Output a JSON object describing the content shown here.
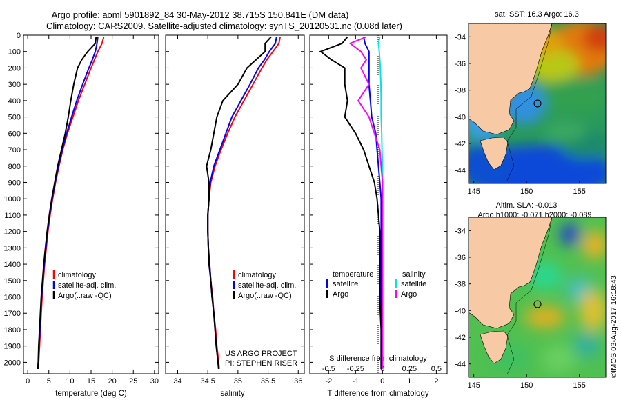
{
  "header": {
    "title_line1": "Argo profile: aoml 5901892_84 30-May-2012 38.715S 150.841E (DM data)",
    "title_line2": "Climatology: CARS2009. Satellite-adjusted climatology: synTS_20120531.nc (0.08d later)"
  },
  "legend_labels": {
    "climatology": "climatology",
    "satellite_adj": "satellite-adj. clim.",
    "argo_raw": "Argo(..raw -QC)",
    "temperature": "temperature",
    "salinity": "salinity",
    "satellite": "satellite",
    "argo": "Argo"
  },
  "credits": {
    "project": "US ARGO PROJECT",
    "pi": "PI: STEPHEN RISER",
    "footer": "©IMOS 03-Aug-2017 16:18:43"
  },
  "colors": {
    "climatology": "#ff0000",
    "satellite_adj": "#0000ff",
    "argo": "#000000",
    "sal_satellite": "#00e5e5",
    "sal_argo": "#ff00ff",
    "land": "#f7c9a4"
  },
  "chart_data": [
    {
      "type": "line",
      "id": "temperature",
      "xlabel": "temperature (deg C)",
      "ylabel": "",
      "xlim": [
        -1,
        31
      ],
      "ylim": [
        2070,
        0
      ],
      "xticks": [
        0,
        5,
        10,
        15,
        20,
        25,
        30
      ],
      "yticks": [
        0,
        100,
        200,
        300,
        400,
        500,
        600,
        700,
        800,
        900,
        1000,
        1100,
        1200,
        1300,
        1400,
        1500,
        1600,
        1700,
        1800,
        1900,
        2000
      ],
      "depth": [
        10,
        50,
        100,
        150,
        200,
        300,
        400,
        500,
        600,
        700,
        800,
        900,
        1000,
        1100,
        1200,
        1300,
        1400,
        1500,
        1600,
        1700,
        1800,
        1900,
        2000,
        2040
      ],
      "series": [
        {
          "name": "climatology",
          "color": "#ff0000",
          "values": [
            18.0,
            17.6,
            16.6,
            15.8,
            15.0,
            13.5,
            12.0,
            10.7,
            9.4,
            8.3,
            7.4,
            6.6,
            5.9,
            5.3,
            4.8,
            4.4,
            4.0,
            3.7,
            3.4,
            3.2,
            3.0,
            2.8,
            2.6,
            2.5
          ]
        },
        {
          "name": "satellite-adj. clim.",
          "color": "#0000ff",
          "values": [
            16.6,
            16.4,
            16.0,
            15.3,
            14.5,
            13.0,
            11.6,
            10.4,
            9.2,
            8.2,
            7.3,
            6.5,
            5.8,
            5.2,
            4.7,
            4.3,
            3.9,
            3.6,
            3.3,
            3.1,
            2.9,
            2.7,
            2.5,
            2.4
          ]
        },
        {
          "name": "Argo(..raw -QC)",
          "color": "#000000",
          "values": [
            16.2,
            16.0,
            14.2,
            12.8,
            11.8,
            10.9,
            10.2,
            9.6,
            8.9,
            8.0,
            7.1,
            6.4,
            5.7,
            5.1,
            4.6,
            4.2,
            3.8,
            3.5,
            3.2,
            3.0,
            2.8,
            2.6,
            2.5,
            2.4
          ]
        }
      ]
    },
    {
      "type": "line",
      "id": "salinity",
      "xlabel": "salinity",
      "ylabel": "",
      "xlim": [
        33.8,
        36.1
      ],
      "ylim": [
        2070,
        0
      ],
      "xticks": [
        34,
        34.5,
        35,
        35.5,
        36
      ],
      "depth": [
        10,
        50,
        100,
        150,
        200,
        300,
        400,
        500,
        600,
        700,
        800,
        900,
        1000,
        1100,
        1200,
        1300,
        1400,
        1500,
        1600,
        1700,
        1800,
        1900,
        2000,
        2040
      ],
      "series": [
        {
          "name": "climatology",
          "color": "#ff0000",
          "values": [
            35.7,
            35.68,
            35.58,
            35.48,
            35.4,
            35.25,
            35.1,
            34.95,
            34.83,
            34.72,
            34.62,
            34.55,
            34.52,
            34.5,
            34.5,
            34.51,
            34.53,
            34.55,
            34.58,
            34.6,
            34.63,
            34.65,
            34.68,
            34.69
          ]
        },
        {
          "name": "satellite-adj. clim.",
          "color": "#0000ff",
          "values": [
            35.64,
            35.62,
            35.52,
            35.44,
            35.34,
            35.2,
            35.05,
            34.9,
            34.8,
            34.7,
            34.6,
            34.54,
            34.52,
            34.5,
            34.5,
            34.51,
            34.53,
            34.55,
            34.57,
            34.6,
            34.62,
            34.64,
            34.67,
            34.68
          ]
        },
        {
          "name": "Argo(..raw -QC)",
          "color": "#000000",
          "values": [
            35.55,
            35.45,
            35.45,
            35.3,
            35.15,
            35.0,
            34.75,
            34.65,
            34.6,
            34.55,
            34.48,
            34.52,
            34.52,
            34.5,
            34.5,
            34.51,
            34.52,
            34.55,
            34.57,
            34.6,
            34.62,
            34.64,
            34.67,
            34.68
          ]
        }
      ]
    },
    {
      "type": "line",
      "id": "difference",
      "xlabel": "T difference from climatology",
      "xlabel_top": "S difference from climatology",
      "xlim": [
        -2.7,
        2.4
      ],
      "ylim": [
        2070,
        0
      ],
      "xticks": [
        -2,
        -1,
        0,
        1,
        2
      ],
      "xticks_s": [
        "-0.5",
        "-0.25",
        "0",
        "0.25",
        "0.5"
      ],
      "depth": [
        10,
        50,
        100,
        150,
        200,
        300,
        400,
        500,
        600,
        700,
        800,
        900,
        1000,
        1100,
        1200,
        1300,
        1400,
        1500,
        1600,
        1700,
        1800,
        1900,
        2000,
        2040
      ],
      "series": [
        {
          "name": "temperature satellite",
          "color": "#0000ff",
          "values": [
            -0.7,
            -0.65,
            -0.5,
            -0.5,
            -0.5,
            -0.5,
            -0.45,
            -0.4,
            -0.25,
            -0.2,
            -0.15,
            -0.1,
            -0.05,
            -0.05,
            -0.05,
            -0.05,
            -0.05,
            -0.05,
            -0.05,
            -0.05,
            -0.05,
            -0.05,
            -0.05,
            -0.05
          ]
        },
        {
          "name": "temperature Argo",
          "color": "#000000",
          "values": [
            -1.3,
            -1.5,
            -2.3,
            -1.9,
            -1.4,
            -1.4,
            -1.3,
            -1.4,
            -1.0,
            -0.7,
            -0.5,
            -0.3,
            -0.2,
            -0.15,
            -0.1,
            -0.1,
            -0.1,
            -0.1,
            -0.1,
            -0.08,
            -0.05,
            -0.05,
            -0.05,
            -0.05
          ]
        },
        {
          "name": "salinity satellite",
          "color": "#00e5e5",
          "values": [
            -0.1,
            -0.15,
            -0.12,
            -0.1,
            -0.08,
            -0.06,
            -0.05,
            -0.05,
            -0.03,
            -0.02,
            0.0,
            0.0,
            0.0,
            0.0,
            0.0,
            0.0,
            0.0,
            0.0,
            0.0,
            0.0,
            0.0,
            0.0,
            0.0,
            0.0
          ]
        },
        {
          "name": "salinity Argo",
          "color": "#ff00ff",
          "values": [
            -0.6,
            -1.2,
            -0.8,
            -0.6,
            -0.8,
            -0.5,
            -0.9,
            -0.5,
            -0.3,
            -0.1,
            -0.05,
            0.0,
            0.0,
            0.0,
            0.0,
            0.0,
            0.0,
            0.0,
            0.0,
            0.0,
            0.0,
            0.0,
            0.0,
            0.0
          ]
        }
      ]
    },
    {
      "type": "heatmap",
      "id": "sst_map",
      "title": "sat. SST: 16.3  Argo: 16.3",
      "xlim": [
        144.5,
        157.5
      ],
      "ylim": [
        -45,
        -33
      ],
      "xticks": [
        145,
        150,
        155
      ],
      "yticks": [
        -34,
        -36,
        -38,
        -40,
        -42,
        -44
      ],
      "argo_position": {
        "lon": 150.841,
        "lat": -38.715
      }
    },
    {
      "type": "heatmap",
      "id": "sla_map",
      "title": "Altim. SLA: -0.013",
      "title2": "Argo h1000: -0.071  h2000: -0.089",
      "xlim": [
        144.5,
        157.5
      ],
      "ylim": [
        -45,
        -33
      ],
      "xticks": [
        145,
        150,
        155
      ],
      "yticks": [
        -34,
        -36,
        -38,
        -40,
        -42,
        -44
      ],
      "argo_position": {
        "lon": 150.841,
        "lat": -38.715
      }
    }
  ]
}
